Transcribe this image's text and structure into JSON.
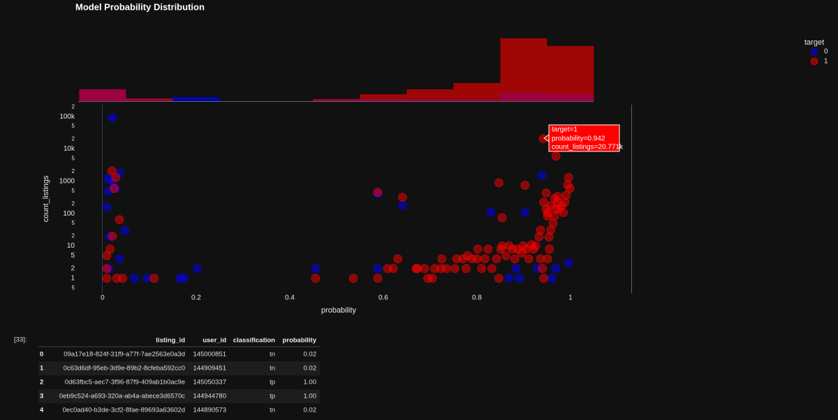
{
  "prompt": "[33]:",
  "chart_data": [
    {
      "type": "histogram",
      "bins": [
        -0.05,
        0.05,
        0.15,
        0.25,
        0.35,
        0.45,
        0.55,
        0.65,
        0.75,
        0.85,
        0.95,
        1.05
      ],
      "series": [
        {
          "name": "0",
          "color": "#0000ff",
          "counts": [
            17,
            3,
            6,
            0,
            0,
            2,
            3,
            2,
            2,
            12,
            10
          ]
        },
        {
          "name": "1",
          "color": "#ff0000",
          "counts": [
            17,
            4,
            0,
            0,
            0,
            3,
            10,
            17,
            26,
            90,
            79
          ]
        }
      ],
      "xlim": [
        -0.07,
        1.13
      ],
      "ylim": [
        0,
        90
      ]
    },
    {
      "type": "scatter",
      "title": "Model Probability Distribution",
      "x_label": "probability",
      "y_label": "count_listings",
      "yscale": "log",
      "grid": false,
      "legend_title": "target",
      "legend": "top-right",
      "xlim": [
        -0.07,
        1.13
      ],
      "ylim": [
        0.35,
        234000
      ],
      "xticks": [
        0,
        0.2,
        0.4,
        0.6,
        0.8,
        1
      ],
      "yticks": [
        {
          "value": 0.5,
          "label": "5"
        },
        1,
        2,
        5,
        10,
        {
          "value": 20,
          "label": "2"
        },
        {
          "value": 50,
          "label": "5"
        },
        100,
        {
          "value": 200,
          "label": "2"
        },
        {
          "value": 500,
          "label": "5"
        },
        1000,
        {
          "value": 2000,
          "label": "2"
        },
        {
          "value": 5000,
          "label": "5"
        },
        {
          "value": 10000,
          "label": "10k"
        },
        {
          "value": 20000,
          "label": "2"
        },
        {
          "value": 50000,
          "label": "5"
        },
        {
          "value": 100000,
          "label": "100k"
        },
        {
          "value": 200000,
          "label": "2"
        }
      ],
      "series": [
        {
          "name": "0",
          "color": "#0000ff",
          "x": [
            0.021,
            0.036,
            0.012,
            0.02,
            0.013,
            0.028,
            0.009,
            0.016,
            0.048,
            0.036,
            0.013,
            0.068,
            0.095,
            0.165,
            0.174,
            0.202,
            0.455,
            0.588,
            0.641,
            0.588,
            0.83,
            0.903,
            0.939,
            0.884,
            0.869,
            0.891,
            0.93,
            0.969,
            0.96,
            0.996
          ],
          "values": [
            93000,
            1800,
            1200,
            1000,
            500,
            600,
            160,
            20,
            30,
            4,
            2,
            1,
            1,
            1,
            1,
            2,
            2,
            410,
            180,
            2,
            110,
            110,
            1500,
            2,
            1,
            1,
            2,
            2,
            1,
            3
          ]
        },
        {
          "name": "1",
          "color": "#ff0000",
          "x": [
            0.942,
            0.969,
            0.02,
            0.028,
            0.025,
            0.009,
            0.009,
            0.03,
            0.043,
            0.036,
            0.021,
            0.016,
            0.009,
            0.11,
            0.455,
            0.536,
            0.588,
            0.641,
            0.631,
            0.609,
            0.588,
            0.67,
            0.688,
            0.695,
            0.705,
            0.71,
            0.723,
            0.725,
            0.735,
            0.753,
            0.757,
            0.777,
            0.77,
            0.789,
            0.8,
            0.81,
            0.817,
            0.824,
            0.832,
            0.842,
            0.847,
            0.851,
            0.854,
            0.862,
            0.869,
            0.876,
            0.881,
            0.887,
            0.896,
            0.899,
            0.906,
            0.911,
            0.917,
            0.921,
            0.926,
            0.933,
            0.936,
            0.94,
            0.943,
            0.951,
            0.955,
            0.954,
            0.958,
            0.963,
            0.966,
            0.969,
            0.972,
            0.976,
            0.981,
            0.985,
            0.988,
            0.991,
            0.994,
            0.996,
            0.999,
            0.943,
            0.948,
            0.951,
            0.958,
            0.966,
            0.973,
            0.936,
            0.847,
            0.854,
            0.903,
            0.948,
            0.951,
            0.802,
            0.78,
            0.673,
            0.621
          ],
          "values": [
            20771,
            6000,
            2100,
            1300,
            600,
            2,
            1,
            1,
            1,
            65,
            20,
            8,
            5,
            1,
            1,
            1,
            450,
            320,
            4,
            2,
            1,
            2,
            2,
            1,
            1,
            2,
            2,
            4,
            2,
            2,
            4,
            2,
            4,
            4,
            4,
            2,
            4,
            8,
            2,
            4,
            1,
            8,
            10,
            5,
            10,
            8,
            4,
            8,
            6,
            10,
            8,
            4,
            11,
            8,
            10,
            19,
            4,
            2,
            1,
            4,
            8,
            19,
            31,
            50,
            84,
            138,
            225,
            138,
            175,
            107,
            225,
            370,
            780,
            1300,
            600,
            225,
            138,
            84,
            175,
            290,
            340,
            31,
            900,
            75,
            750,
            430,
            107,
            8,
            5,
            2,
            2
          ]
        }
      ],
      "tooltip": [
        "target=1",
        "probability=0.942",
        "count_listings=20.771k"
      ]
    }
  ],
  "table": {
    "columns": [
      "listing_id",
      "user_id",
      "classification",
      "probability"
    ],
    "rows": [
      {
        "index": "0",
        "cells": [
          "09a17e18-824f-31f9-a77f-7ae2563e0a3d",
          "145000851",
          "tn",
          "0.02"
        ]
      },
      {
        "index": "1",
        "cells": [
          "0c63d6df-95eb-3d9e-89b2-8cfeba592cc0",
          "144909451",
          "tn",
          "0.02"
        ]
      },
      {
        "index": "2",
        "cells": [
          "0d63fbc5-aec7-3f96-87f9-409ab1b0ac9e",
          "145050337",
          "tp",
          "1.00"
        ]
      },
      {
        "index": "3",
        "cells": [
          "0eb9c524-a693-320a-ab4a-abece3d6570c",
          "144944780",
          "tp",
          "1.00"
        ]
      },
      {
        "index": "4",
        "cells": [
          "0ec0ad40-b3de-3cf2-8fae-89693a63602d",
          "144890573",
          "tn",
          "0.02"
        ]
      }
    ]
  }
}
